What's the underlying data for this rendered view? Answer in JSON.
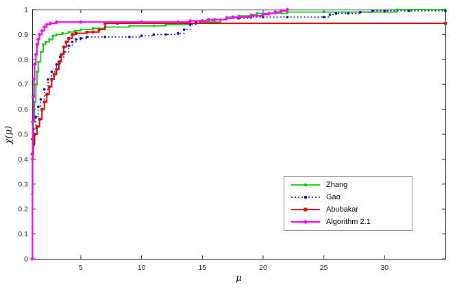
{
  "chart_data": {
    "type": "line",
    "step": true,
    "title": "",
    "xlabel": "μ",
    "ylabel": "χ(μ)",
    "xlim": [
      1,
      35
    ],
    "ylim": [
      0,
      1
    ],
    "xticks": [
      5,
      10,
      15,
      20,
      25,
      30
    ],
    "xtick_labels": [
      "5",
      "10",
      "15",
      "20",
      "25",
      "30"
    ],
    "yticks": [
      0,
      0.1,
      0.2,
      0.3,
      0.4,
      0.5,
      0.6,
      0.7,
      0.8,
      0.9,
      1
    ],
    "ytick_labels": [
      "0",
      "0.1",
      "0.2",
      "0.3",
      "0.4",
      "0.5",
      "0.6",
      "0.7",
      "0.8",
      "0.9",
      "1"
    ],
    "grid": false,
    "axis_color": "#262626",
    "background": "#ffffff",
    "legend_position": "lower right",
    "series": [
      {
        "name": "Zhang",
        "color": "#00cc00",
        "style": "solid",
        "marker": "square",
        "lw": 1.8,
        "marker_size": 3,
        "points": [
          [
            1,
            0.26
          ],
          [
            1.05,
            0.45
          ],
          [
            1.1,
            0.55
          ],
          [
            1.2,
            0.63
          ],
          [
            1.3,
            0.7
          ],
          [
            1.4,
            0.75
          ],
          [
            1.5,
            0.79
          ],
          [
            1.7,
            0.83
          ],
          [
            1.9,
            0.86
          ],
          [
            2.1,
            0.87
          ],
          [
            2.4,
            0.88
          ],
          [
            2.7,
            0.895
          ],
          [
            3,
            0.9
          ],
          [
            3.5,
            0.905
          ],
          [
            4,
            0.91
          ],
          [
            4.5,
            0.915
          ],
          [
            5,
            0.92
          ],
          [
            6,
            0.925
          ],
          [
            7,
            0.93
          ],
          [
            9,
            0.935
          ],
          [
            11,
            0.935
          ],
          [
            12,
            0.94
          ],
          [
            14,
            0.945
          ],
          [
            15,
            0.95
          ],
          [
            16,
            0.95
          ],
          [
            16.5,
            0.96
          ],
          [
            17,
            0.97
          ],
          [
            18,
            0.975
          ],
          [
            19,
            0.98
          ],
          [
            19.5,
            0.985
          ],
          [
            21,
            0.985
          ],
          [
            22,
            0.99
          ],
          [
            25,
            0.99
          ],
          [
            28,
            0.99
          ],
          [
            31,
            1.0
          ],
          [
            35,
            1.0
          ]
        ]
      },
      {
        "name": "Gao",
        "color": "#0000cc",
        "style": "dotted",
        "marker": "circle",
        "lw": 1.5,
        "marker_size": 3.6,
        "points": [
          [
            1,
            0.48
          ],
          [
            1.1,
            0.52
          ],
          [
            1.3,
            0.57
          ],
          [
            1.5,
            0.61
          ],
          [
            1.7,
            0.64
          ],
          [
            2,
            0.68
          ],
          [
            2.3,
            0.72
          ],
          [
            2.6,
            0.75
          ],
          [
            3,
            0.78
          ],
          [
            3.3,
            0.81
          ],
          [
            3.6,
            0.83
          ],
          [
            4,
            0.855
          ],
          [
            4.3,
            0.87
          ],
          [
            4.6,
            0.88
          ],
          [
            5,
            0.885
          ],
          [
            5.5,
            0.89
          ],
          [
            7,
            0.89
          ],
          [
            9,
            0.89
          ],
          [
            10,
            0.895
          ],
          [
            11,
            0.9
          ],
          [
            12,
            0.9
          ],
          [
            13,
            0.905
          ],
          [
            13.5,
            0.92
          ],
          [
            14,
            0.94
          ],
          [
            14.5,
            0.95
          ],
          [
            15,
            0.955
          ],
          [
            16,
            0.96
          ],
          [
            17,
            0.965
          ],
          [
            18,
            0.965
          ],
          [
            19,
            0.97
          ],
          [
            20,
            0.97
          ],
          [
            22,
            0.97
          ],
          [
            25,
            0.97
          ],
          [
            25.5,
            0.98
          ],
          [
            26,
            0.985
          ],
          [
            27,
            0.985
          ],
          [
            28,
            0.99
          ],
          [
            29,
            0.995
          ],
          [
            30,
            0.995
          ],
          [
            32,
            0.995
          ],
          [
            35,
            0.995
          ]
        ]
      },
      {
        "name": "Abubakar",
        "color": "#dd0000",
        "style": "solid",
        "marker": "square",
        "lw": 2,
        "marker_size": 4,
        "points": [
          [
            1,
            0.42
          ],
          [
            1.1,
            0.46
          ],
          [
            1.2,
            0.5
          ],
          [
            1.4,
            0.53
          ],
          [
            1.6,
            0.56
          ],
          [
            1.8,
            0.6
          ],
          [
            2,
            0.63
          ],
          [
            2.2,
            0.66
          ],
          [
            2.4,
            0.69
          ],
          [
            2.6,
            0.72
          ],
          [
            2.8,
            0.74
          ],
          [
            3,
            0.76
          ],
          [
            3.2,
            0.79
          ],
          [
            3.4,
            0.82
          ],
          [
            3.6,
            0.85
          ],
          [
            3.8,
            0.87
          ],
          [
            4,
            0.885
          ],
          [
            4.3,
            0.9
          ],
          [
            4.6,
            0.905
          ],
          [
            5.5,
            0.91
          ],
          [
            6,
            0.91
          ],
          [
            6.5,
            0.92
          ],
          [
            7,
            0.945
          ],
          [
            8,
            0.945
          ],
          [
            35,
            0.945
          ]
        ]
      },
      {
        "name": "Algorithm 2.1",
        "color": "#ff00ff",
        "style": "solid",
        "marker": "diamond",
        "lw": 2.2,
        "marker_size": 4.6,
        "points": [
          [
            1,
            0.0
          ],
          [
            1.02,
            0.4
          ],
          [
            1.05,
            0.55
          ],
          [
            1.1,
            0.65
          ],
          [
            1.15,
            0.72
          ],
          [
            1.2,
            0.78
          ],
          [
            1.3,
            0.82
          ],
          [
            1.4,
            0.86
          ],
          [
            1.5,
            0.88
          ],
          [
            1.6,
            0.9
          ],
          [
            1.8,
            0.915
          ],
          [
            2,
            0.93
          ],
          [
            2.2,
            0.94
          ],
          [
            2.5,
            0.945
          ],
          [
            3,
            0.95
          ],
          [
            5,
            0.95
          ],
          [
            10,
            0.95
          ],
          [
            13,
            0.95
          ],
          [
            14,
            0.955
          ],
          [
            15,
            0.955
          ],
          [
            15.5,
            0.96
          ],
          [
            16,
            0.96
          ],
          [
            17,
            0.965
          ],
          [
            17.5,
            0.97
          ],
          [
            18,
            0.97
          ],
          [
            19,
            0.975
          ],
          [
            20,
            0.98
          ],
          [
            20.5,
            0.985
          ],
          [
            21,
            0.99
          ],
          [
            21.5,
            0.995
          ],
          [
            22,
            1.0
          ]
        ]
      }
    ]
  }
}
